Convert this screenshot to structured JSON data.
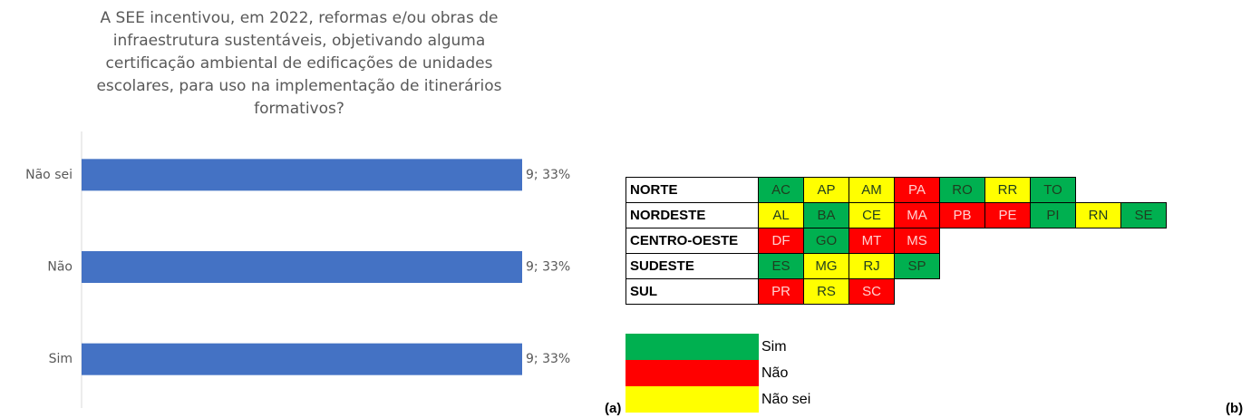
{
  "chart_data": {
    "type": "barh",
    "title": "A SEE incentivou, em 2022, reformas e/ou obras de\ninfraestrutura sustentáveis, objetivando alguma\ncertificação ambiental de edificações de unidades\nescolares, para uso na implementação de itinerários\nformativos?",
    "categories": [
      "Não sei",
      "Não",
      "Sim"
    ],
    "values": [
      9,
      9,
      9
    ],
    "value_labels": [
      "9; 33%",
      "9; 33%",
      "9; 33%"
    ],
    "color": "#4472c4",
    "xlim": [
      0,
      10
    ],
    "label_a": "(a)"
  },
  "table": {
    "rows": [
      {
        "region": "NORTE",
        "cells": [
          {
            "uf": "AC",
            "color": "#00b050"
          },
          {
            "uf": "AP",
            "color": "#ffff00"
          },
          {
            "uf": "AM",
            "color": "#ffff00"
          },
          {
            "uf": "PA",
            "color": "#ff0000"
          },
          {
            "uf": "RO",
            "color": "#00b050"
          },
          {
            "uf": "RR",
            "color": "#ffff00"
          },
          {
            "uf": "TO",
            "color": "#00b050"
          }
        ]
      },
      {
        "region": "NORDESTE",
        "cells": [
          {
            "uf": "AL",
            "color": "#ffff00"
          },
          {
            "uf": "BA",
            "color": "#00b050"
          },
          {
            "uf": "CE",
            "color": "#ffff00"
          },
          {
            "uf": "MA",
            "color": "#ff0000"
          },
          {
            "uf": "PB",
            "color": "#ff0000"
          },
          {
            "uf": "PE",
            "color": "#ff0000"
          },
          {
            "uf": "PI",
            "color": "#00b050"
          },
          {
            "uf": "RN",
            "color": "#ffff00"
          },
          {
            "uf": "SE",
            "color": "#00b050"
          }
        ]
      },
      {
        "region": "CENTRO-OESTE",
        "cells": [
          {
            "uf": "DF",
            "color": "#ff0000"
          },
          {
            "uf": "GO",
            "color": "#00b050"
          },
          {
            "uf": "MT",
            "color": "#ff0000"
          },
          {
            "uf": "MS",
            "color": "#ff0000"
          }
        ]
      },
      {
        "region": "SUDESTE",
        "cells": [
          {
            "uf": "ES",
            "color": "#00b050"
          },
          {
            "uf": "MG",
            "color": "#ffff00"
          },
          {
            "uf": "RJ",
            "color": "#ffff00"
          },
          {
            "uf": "SP",
            "color": "#00b050"
          }
        ]
      },
      {
        "region": "SUL",
        "cells": [
          {
            "uf": "PR",
            "color": "#ff0000"
          },
          {
            "uf": "RS",
            "color": "#ffff00"
          },
          {
            "uf": "SC",
            "color": "#ff0000"
          }
        ]
      }
    ],
    "legend": [
      {
        "label": "Sim",
        "color": "#00b050"
      },
      {
        "label": "Não",
        "color": "#ff0000"
      },
      {
        "label": "Não sei",
        "color": "#ffff00"
      }
    ],
    "label_b": "(b)"
  }
}
